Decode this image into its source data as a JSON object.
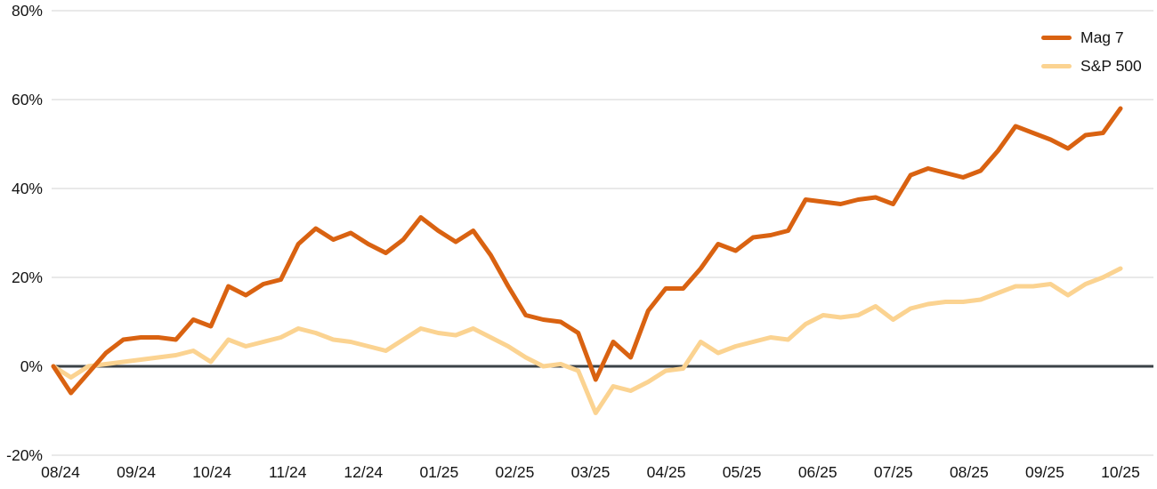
{
  "chart_data": {
    "type": "line",
    "title": "",
    "x_tick_labels": [
      "08/24",
      "09/24",
      "10/24",
      "11/24",
      "12/24",
      "01/25",
      "02/25",
      "03/25",
      "04/25",
      "05/25",
      "06/25",
      "07/25",
      "08/25",
      "09/25",
      "10/25"
    ],
    "y_tick_labels": [
      "80%",
      "60%",
      "40%",
      "20%",
      "0%",
      "-20%"
    ],
    "y_tick_values": [
      80,
      60,
      40,
      20,
      0,
      -20
    ],
    "ylim": [
      -20,
      80
    ],
    "grid": "horizontal",
    "grid_color": "#dcdcdc",
    "zero_line_color": "#3b4247",
    "background_color": "#ffffff",
    "legend_position": "top-right",
    "series": [
      {
        "name": "Mag 7",
        "color": "#d96211",
        "values": [
          0,
          -6,
          -1.5,
          3,
          6,
          6.5,
          6.5,
          6,
          10.5,
          9,
          18,
          16,
          18.5,
          19.5,
          27.5,
          31,
          28.5,
          30,
          27.5,
          25.5,
          28.5,
          33.5,
          30.5,
          28,
          30.5,
          25,
          18,
          11.5,
          10.5,
          10,
          7.5,
          -3,
          5.5,
          2,
          12.5,
          17.5,
          17.5,
          22,
          27.5,
          26,
          29,
          29.5,
          30.5,
          37.5,
          37,
          36.5,
          37.5,
          38,
          36.5,
          43,
          44.5,
          43.5,
          42.5,
          44,
          48.5,
          54,
          52.5,
          51,
          49,
          52,
          52.5,
          58
        ]
      },
      {
        "name": "S&P 500",
        "color": "#fbd391",
        "values": [
          0,
          -2.5,
          0,
          0.5,
          1,
          1.5,
          2,
          2.5,
          3.5,
          1,
          6,
          4.5,
          5.5,
          6.5,
          8.5,
          7.5,
          6,
          5.5,
          4.5,
          3.5,
          6,
          8.5,
          7.5,
          7,
          8.5,
          6.5,
          4.5,
          2,
          0,
          0.5,
          -1,
          -10.5,
          -4.5,
          -5.5,
          -3.5,
          -1,
          -0.5,
          5.5,
          3,
          4.5,
          5.5,
          6.5,
          6,
          9.5,
          11.5,
          11,
          11.5,
          13.5,
          10.5,
          13,
          14,
          14.5,
          14.5,
          15,
          16.5,
          18,
          18,
          18.5,
          16,
          18.5,
          20,
          22
        ]
      }
    ]
  }
}
